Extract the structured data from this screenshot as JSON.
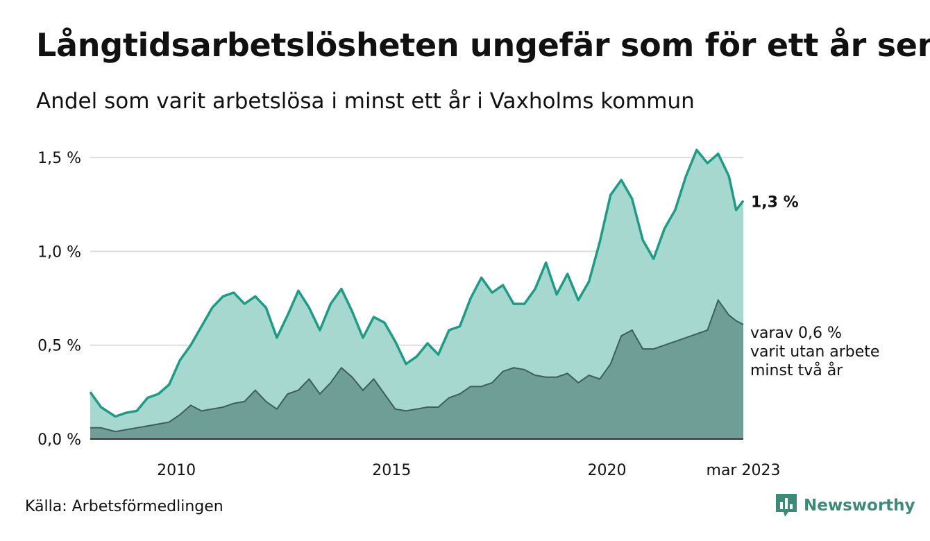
{
  "title": "Långtidsarbetslösheten ungefär som för ett år sen",
  "subtitle": "Andel som varit arbetslösa i minst ett år i Vaxholms kommun",
  "source": "Källa: Arbetsförmedlingen",
  "brand": "Newsworthy",
  "colors": {
    "total_line": "#1f9a86",
    "total_fill": "#a6d8d0",
    "long_fill": "#6f9e96",
    "long_line": "#3e5e58",
    "grid": "#dddddd"
  },
  "icons": {
    "brand": "chart-bars-icon"
  },
  "chart_data": {
    "type": "area",
    "x_range": [
      "2008-01",
      "2023-03"
    ],
    "ylim": [
      0,
      1.6
    ],
    "y_ticks": [
      {
        "value": 0.0,
        "label": "0,0 %"
      },
      {
        "value": 0.5,
        "label": "0,5 %"
      },
      {
        "value": 1.0,
        "label": "1,0 %"
      },
      {
        "value": 1.5,
        "label": "1,5 %"
      }
    ],
    "x_ticks": [
      {
        "value": "2010-01",
        "label": "2010"
      },
      {
        "value": "2015-01",
        "label": "2015"
      },
      {
        "value": "2020-01",
        "label": "2020"
      },
      {
        "value": "2023-03",
        "label": "mar 2023"
      }
    ],
    "end_label": "1,3 %",
    "annotation": [
      "varav 0,6 %",
      "varit utan arbete",
      "minst två år"
    ],
    "series": [
      {
        "key": "total",
        "points": [
          [
            "2008-01",
            0.25
          ],
          [
            "2008-04",
            0.17
          ],
          [
            "2008-08",
            0.12
          ],
          [
            "2008-11",
            0.14
          ],
          [
            "2009-02",
            0.15
          ],
          [
            "2009-05",
            0.22
          ],
          [
            "2009-08",
            0.24
          ],
          [
            "2009-11",
            0.29
          ],
          [
            "2010-02",
            0.42
          ],
          [
            "2010-05",
            0.5
          ],
          [
            "2010-08",
            0.6
          ],
          [
            "2010-11",
            0.7
          ],
          [
            "2011-02",
            0.76
          ],
          [
            "2011-05",
            0.78
          ],
          [
            "2011-08",
            0.72
          ],
          [
            "2011-11",
            0.76
          ],
          [
            "2012-02",
            0.7
          ],
          [
            "2012-05",
            0.54
          ],
          [
            "2012-08",
            0.66
          ],
          [
            "2012-11",
            0.79
          ],
          [
            "2013-02",
            0.7
          ],
          [
            "2013-05",
            0.58
          ],
          [
            "2013-08",
            0.72
          ],
          [
            "2013-11",
            0.8
          ],
          [
            "2014-02",
            0.68
          ],
          [
            "2014-05",
            0.54
          ],
          [
            "2014-08",
            0.65
          ],
          [
            "2014-11",
            0.62
          ],
          [
            "2015-02",
            0.52
          ],
          [
            "2015-05",
            0.4
          ],
          [
            "2015-08",
            0.44
          ],
          [
            "2015-11",
            0.51
          ],
          [
            "2016-02",
            0.45
          ],
          [
            "2016-05",
            0.58
          ],
          [
            "2016-08",
            0.6
          ],
          [
            "2016-11",
            0.75
          ],
          [
            "2017-02",
            0.86
          ],
          [
            "2017-05",
            0.78
          ],
          [
            "2017-08",
            0.82
          ],
          [
            "2017-11",
            0.72
          ],
          [
            "2018-02",
            0.72
          ],
          [
            "2018-05",
            0.8
          ],
          [
            "2018-08",
            0.94
          ],
          [
            "2018-11",
            0.77
          ],
          [
            "2019-02",
            0.88
          ],
          [
            "2019-05",
            0.74
          ],
          [
            "2019-08",
            0.84
          ],
          [
            "2019-11",
            1.05
          ],
          [
            "2020-02",
            1.3
          ],
          [
            "2020-05",
            1.38
          ],
          [
            "2020-08",
            1.28
          ],
          [
            "2020-11",
            1.06
          ],
          [
            "2021-02",
            0.96
          ],
          [
            "2021-05",
            1.12
          ],
          [
            "2021-08",
            1.22
          ],
          [
            "2021-11",
            1.4
          ],
          [
            "2022-02",
            1.54
          ],
          [
            "2022-05",
            1.47
          ],
          [
            "2022-08",
            1.52
          ],
          [
            "2022-11",
            1.4
          ],
          [
            "2023-01",
            1.22
          ],
          [
            "2023-03",
            1.27
          ]
        ]
      },
      {
        "key": "long",
        "points": [
          [
            "2008-01",
            0.06
          ],
          [
            "2008-04",
            0.06
          ],
          [
            "2008-08",
            0.04
          ],
          [
            "2008-11",
            0.05
          ],
          [
            "2009-02",
            0.06
          ],
          [
            "2009-05",
            0.07
          ],
          [
            "2009-08",
            0.08
          ],
          [
            "2009-11",
            0.09
          ],
          [
            "2010-02",
            0.13
          ],
          [
            "2010-05",
            0.18
          ],
          [
            "2010-08",
            0.15
          ],
          [
            "2010-11",
            0.16
          ],
          [
            "2011-02",
            0.17
          ],
          [
            "2011-05",
            0.19
          ],
          [
            "2011-08",
            0.2
          ],
          [
            "2011-11",
            0.26
          ],
          [
            "2012-02",
            0.2
          ],
          [
            "2012-05",
            0.16
          ],
          [
            "2012-08",
            0.24
          ],
          [
            "2012-11",
            0.26
          ],
          [
            "2013-02",
            0.32
          ],
          [
            "2013-05",
            0.24
          ],
          [
            "2013-08",
            0.3
          ],
          [
            "2013-11",
            0.38
          ],
          [
            "2014-02",
            0.33
          ],
          [
            "2014-05",
            0.26
          ],
          [
            "2014-08",
            0.32
          ],
          [
            "2014-11",
            0.24
          ],
          [
            "2015-02",
            0.16
          ],
          [
            "2015-05",
            0.15
          ],
          [
            "2015-08",
            0.16
          ],
          [
            "2015-11",
            0.17
          ],
          [
            "2016-02",
            0.17
          ],
          [
            "2016-05",
            0.22
          ],
          [
            "2016-08",
            0.24
          ],
          [
            "2016-11",
            0.28
          ],
          [
            "2017-02",
            0.28
          ],
          [
            "2017-05",
            0.3
          ],
          [
            "2017-08",
            0.36
          ],
          [
            "2017-11",
            0.38
          ],
          [
            "2018-02",
            0.37
          ],
          [
            "2018-05",
            0.34
          ],
          [
            "2018-08",
            0.33
          ],
          [
            "2018-11",
            0.33
          ],
          [
            "2019-02",
            0.35
          ],
          [
            "2019-05",
            0.3
          ],
          [
            "2019-08",
            0.34
          ],
          [
            "2019-11",
            0.32
          ],
          [
            "2020-02",
            0.4
          ],
          [
            "2020-05",
            0.55
          ],
          [
            "2020-08",
            0.58
          ],
          [
            "2020-11",
            0.48
          ],
          [
            "2021-02",
            0.48
          ],
          [
            "2021-05",
            0.5
          ],
          [
            "2021-08",
            0.52
          ],
          [
            "2021-11",
            0.54
          ],
          [
            "2022-02",
            0.56
          ],
          [
            "2022-05",
            0.58
          ],
          [
            "2022-08",
            0.74
          ],
          [
            "2022-11",
            0.66
          ],
          [
            "2023-01",
            0.63
          ],
          [
            "2023-03",
            0.61
          ]
        ]
      }
    ]
  }
}
